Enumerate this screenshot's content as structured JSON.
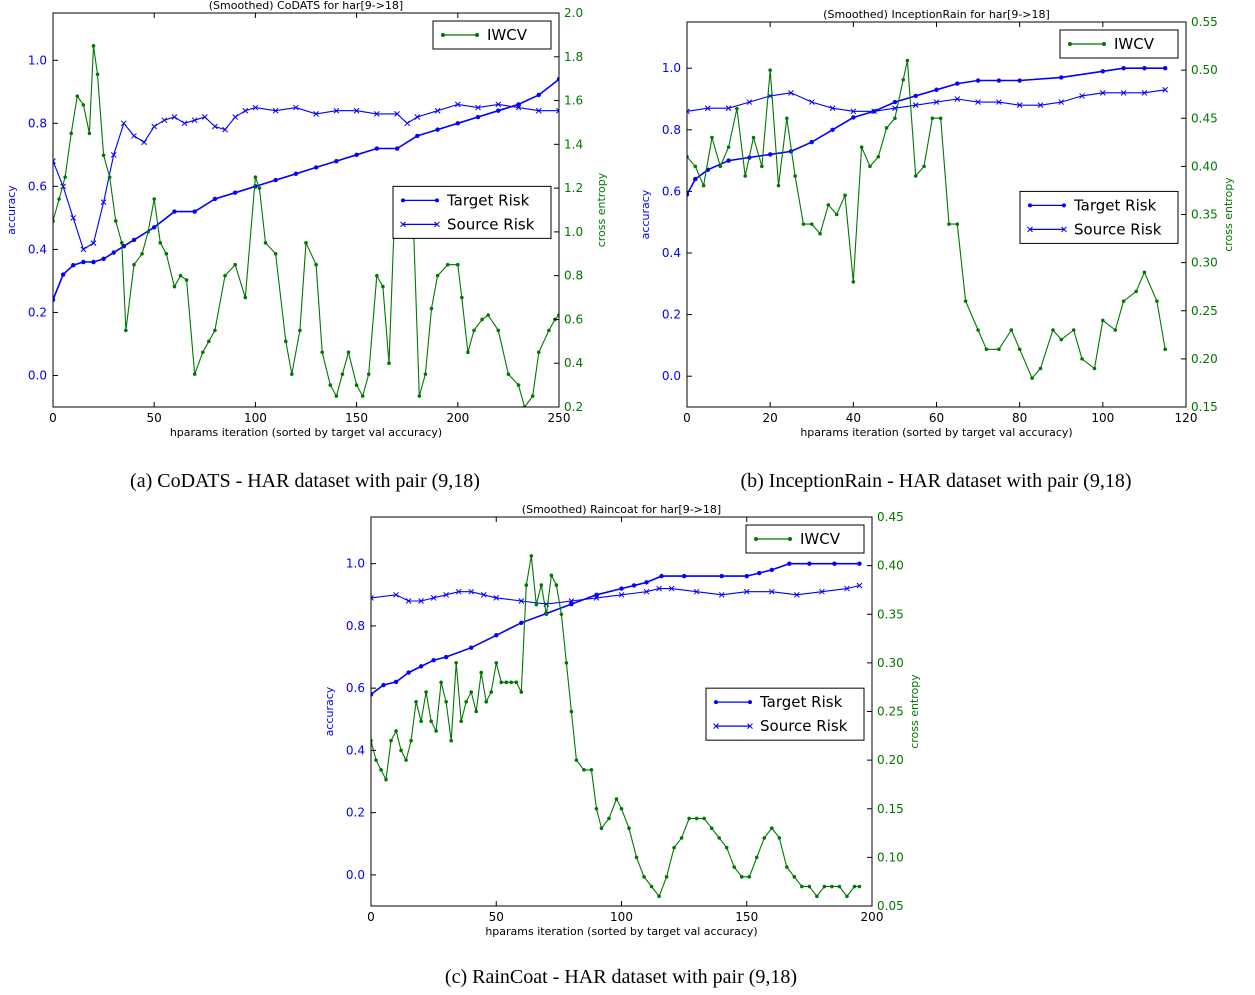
{
  "chart_data": [
    {
      "type": "line",
      "title": "(Smoothed) CoDATS for har[9->18]",
      "caption": "(a) CoDATS - HAR dataset with pair (9,18)",
      "xlabel": "hparams iteration (sorted by target val accuracy)",
      "ylabel_left": "accuracy",
      "ylabel_right": "cross entropy",
      "xlim": [
        0,
        250
      ],
      "ylim_left": [
        -0.1,
        1.15
      ],
      "ylim_right": [
        0.2,
        2.0
      ],
      "xticks": [
        0,
        50,
        100,
        150,
        200,
        250
      ],
      "yticks_left": [
        0.0,
        0.2,
        0.4,
        0.6,
        0.8,
        1.0
      ],
      "yticks_right": [
        0.2,
        0.4,
        0.6,
        0.8,
        1.0,
        1.2,
        1.4,
        1.6,
        1.8,
        2.0
      ],
      "legend_left": "center-right",
      "legend_right": "top-right",
      "series": [
        {
          "name": "Target Risk",
          "axis": "left",
          "color": "#0000ff",
          "marker": "dot",
          "x": [
            0,
            5,
            10,
            15,
            20,
            25,
            30,
            35,
            40,
            50,
            60,
            70,
            80,
            90,
            100,
            110,
            120,
            130,
            140,
            150,
            160,
            170,
            180,
            190,
            200,
            210,
            220,
            230,
            240,
            250
          ],
          "y": [
            0.24,
            0.32,
            0.35,
            0.36,
            0.36,
            0.37,
            0.39,
            0.41,
            0.43,
            0.47,
            0.52,
            0.52,
            0.56,
            0.58,
            0.6,
            0.62,
            0.64,
            0.66,
            0.68,
            0.7,
            0.72,
            0.72,
            0.76,
            0.78,
            0.8,
            0.82,
            0.84,
            0.86,
            0.89,
            0.94
          ]
        },
        {
          "name": "Source Risk",
          "axis": "left",
          "color": "#0000ff",
          "marker": "x",
          "x": [
            0,
            5,
            10,
            15,
            20,
            25,
            30,
            35,
            40,
            45,
            50,
            55,
            60,
            65,
            70,
            75,
            80,
            85,
            90,
            95,
            100,
            110,
            120,
            130,
            140,
            150,
            160,
            170,
            175,
            180,
            190,
            200,
            210,
            220,
            230,
            240,
            250
          ],
          "y": [
            0.68,
            0.6,
            0.5,
            0.4,
            0.42,
            0.55,
            0.7,
            0.8,
            0.76,
            0.74,
            0.79,
            0.81,
            0.82,
            0.8,
            0.81,
            0.82,
            0.79,
            0.78,
            0.82,
            0.84,
            0.85,
            0.84,
            0.85,
            0.83,
            0.84,
            0.84,
            0.83,
            0.83,
            0.8,
            0.82,
            0.84,
            0.86,
            0.85,
            0.86,
            0.85,
            0.84,
            0.84
          ]
        },
        {
          "name": "IWCV",
          "axis": "right",
          "color": "#007700",
          "marker": "dot",
          "x": [
            0,
            3,
            6,
            9,
            12,
            15,
            18,
            20,
            22,
            25,
            28,
            31,
            34,
            36,
            40,
            44,
            47,
            50,
            53,
            56,
            60,
            63,
            66,
            70,
            74,
            77,
            80,
            85,
            90,
            95,
            100,
            102,
            105,
            110,
            115,
            118,
            122,
            125,
            130,
            133,
            137,
            140,
            143,
            146,
            150,
            153,
            156,
            160,
            163,
            166,
            169,
            172,
            175,
            178,
            181,
            184,
            187,
            190,
            195,
            200,
            202,
            205,
            208,
            212,
            215,
            220,
            225,
            230,
            233,
            237,
            240,
            245,
            248,
            250
          ],
          "y": [
            1.05,
            1.15,
            1.25,
            1.45,
            1.62,
            1.58,
            1.45,
            1.85,
            1.72,
            1.35,
            1.25,
            1.05,
            0.95,
            0.55,
            0.85,
            0.9,
            1.0,
            1.15,
            0.95,
            0.9,
            0.75,
            0.8,
            0.78,
            0.35,
            0.45,
            0.5,
            0.55,
            0.8,
            0.85,
            0.7,
            1.25,
            1.2,
            0.95,
            0.9,
            0.5,
            0.35,
            0.55,
            0.95,
            0.85,
            0.45,
            0.3,
            0.25,
            0.35,
            0.45,
            0.3,
            0.25,
            0.35,
            0.8,
            0.75,
            0.4,
            1.15,
            1.12,
            1.1,
            1.05,
            0.25,
            0.35,
            0.65,
            0.8,
            0.85,
            0.85,
            0.7,
            0.45,
            0.55,
            0.6,
            0.62,
            0.55,
            0.35,
            0.3,
            0.2,
            0.25,
            0.45,
            0.55,
            0.6,
            0.62
          ]
        }
      ]
    },
    {
      "type": "line",
      "title": "(Smoothed) InceptionRain for har[9->18]",
      "caption": "(b) InceptionRain - HAR dataset with pair (9,18)",
      "xlabel": "hparams iteration (sorted by target val accuracy)",
      "ylabel_left": "accuracy",
      "ylabel_right": "cross entropy",
      "xlim": [
        0,
        120
      ],
      "ylim_left": [
        -0.1,
        1.15
      ],
      "ylim_right": [
        0.15,
        0.55
      ],
      "xticks": [
        0,
        20,
        40,
        60,
        80,
        100,
        120
      ],
      "yticks_left": [
        0.0,
        0.2,
        0.4,
        0.6,
        0.8,
        1.0
      ],
      "yticks_right": [
        0.15,
        0.2,
        0.25,
        0.3,
        0.35,
        0.4,
        0.45,
        0.5,
        0.55
      ],
      "legend_left": "center-right",
      "legend_right": "top-right",
      "series": [
        {
          "name": "Target Risk",
          "axis": "left",
          "color": "#0000ff",
          "marker": "dot",
          "x": [
            0,
            2,
            5,
            10,
            15,
            20,
            25,
            30,
            35,
            40,
            45,
            50,
            55,
            60,
            65,
            70,
            75,
            80,
            90,
            100,
            105,
            110,
            115
          ],
          "y": [
            0.59,
            0.64,
            0.67,
            0.7,
            0.71,
            0.72,
            0.73,
            0.76,
            0.8,
            0.84,
            0.86,
            0.89,
            0.91,
            0.93,
            0.95,
            0.96,
            0.96,
            0.96,
            0.97,
            0.99,
            1.0,
            1.0,
            1.0
          ]
        },
        {
          "name": "Source Risk",
          "axis": "left",
          "color": "#0000ff",
          "marker": "x",
          "x": [
            0,
            5,
            10,
            15,
            20,
            25,
            30,
            35,
            40,
            45,
            50,
            55,
            60,
            65,
            70,
            75,
            80,
            85,
            90,
            95,
            100,
            105,
            110,
            115
          ],
          "y": [
            0.86,
            0.87,
            0.87,
            0.89,
            0.91,
            0.92,
            0.89,
            0.87,
            0.86,
            0.86,
            0.87,
            0.88,
            0.89,
            0.9,
            0.89,
            0.89,
            0.88,
            0.88,
            0.89,
            0.91,
            0.92,
            0.92,
            0.92,
            0.93
          ]
        },
        {
          "name": "IWCV",
          "axis": "right",
          "color": "#007700",
          "marker": "dot",
          "x": [
            0,
            2,
            4,
            6,
            8,
            10,
            12,
            14,
            16,
            18,
            20,
            22,
            24,
            26,
            28,
            30,
            32,
            34,
            36,
            38,
            40,
            42,
            44,
            46,
            48,
            50,
            52,
            53,
            55,
            57,
            59,
            61,
            63,
            65,
            67,
            70,
            72,
            75,
            78,
            80,
            83,
            85,
            88,
            90,
            93,
            95,
            98,
            100,
            103,
            105,
            108,
            110,
            113,
            115
          ],
          "y": [
            0.41,
            0.4,
            0.38,
            0.43,
            0.4,
            0.42,
            0.46,
            0.39,
            0.43,
            0.4,
            0.5,
            0.38,
            0.45,
            0.39,
            0.34,
            0.34,
            0.33,
            0.36,
            0.35,
            0.37,
            0.28,
            0.42,
            0.4,
            0.41,
            0.44,
            0.45,
            0.49,
            0.51,
            0.39,
            0.4,
            0.45,
            0.45,
            0.34,
            0.34,
            0.26,
            0.23,
            0.21,
            0.21,
            0.23,
            0.21,
            0.18,
            0.19,
            0.23,
            0.22,
            0.23,
            0.2,
            0.19,
            0.24,
            0.23,
            0.26,
            0.27,
            0.29,
            0.26,
            0.21
          ]
        }
      ]
    },
    {
      "type": "line",
      "title": "(Smoothed) Raincoat for har[9->18]",
      "caption": "(c) RainCoat - HAR dataset with pair (9,18)",
      "xlabel": "hparams iteration (sorted by target val accuracy)",
      "ylabel_left": "accuracy",
      "ylabel_right": "cross entropy",
      "xlim": [
        0,
        200
      ],
      "ylim_left": [
        -0.1,
        1.15
      ],
      "ylim_right": [
        0.05,
        0.45
      ],
      "xticks": [
        0,
        50,
        100,
        150,
        200
      ],
      "yticks_left": [
        0.0,
        0.2,
        0.4,
        0.6,
        0.8,
        1.0
      ],
      "yticks_right": [
        0.05,
        0.1,
        0.15,
        0.2,
        0.25,
        0.3,
        0.35,
        0.4,
        0.45
      ],
      "legend_left": "center-right",
      "legend_right": "top-right",
      "series": [
        {
          "name": "Target Risk",
          "axis": "left",
          "color": "#0000ff",
          "marker": "dot",
          "x": [
            0,
            5,
            10,
            15,
            20,
            25,
            30,
            40,
            50,
            60,
            70,
            80,
            90,
            100,
            105,
            110,
            116,
            125,
            140,
            150,
            155,
            160,
            167,
            175,
            185,
            195
          ],
          "y": [
            0.58,
            0.61,
            0.62,
            0.65,
            0.67,
            0.69,
            0.7,
            0.73,
            0.77,
            0.81,
            0.84,
            0.87,
            0.9,
            0.92,
            0.93,
            0.94,
            0.96,
            0.96,
            0.96,
            0.96,
            0.97,
            0.98,
            1.0,
            1.0,
            1.0,
            1.0
          ]
        },
        {
          "name": "Source Risk",
          "axis": "left",
          "color": "#0000ff",
          "marker": "x",
          "x": [
            0,
            10,
            15,
            20,
            25,
            30,
            35,
            40,
            45,
            50,
            60,
            70,
            80,
            90,
            100,
            110,
            115,
            120,
            130,
            140,
            150,
            160,
            170,
            180,
            190,
            195
          ],
          "y": [
            0.89,
            0.9,
            0.88,
            0.88,
            0.89,
            0.9,
            0.91,
            0.91,
            0.9,
            0.89,
            0.88,
            0.87,
            0.88,
            0.89,
            0.9,
            0.91,
            0.92,
            0.92,
            0.91,
            0.9,
            0.91,
            0.91,
            0.9,
            0.91,
            0.92,
            0.93
          ]
        },
        {
          "name": "IWCV",
          "axis": "right",
          "color": "#007700",
          "marker": "dot",
          "x": [
            0,
            2,
            4,
            6,
            8,
            10,
            12,
            14,
            16,
            18,
            20,
            22,
            24,
            26,
            28,
            30,
            32,
            34,
            36,
            38,
            40,
            42,
            44,
            46,
            48,
            50,
            52,
            54,
            56,
            58,
            60,
            62,
            64,
            66,
            68,
            70,
            72,
            74,
            76,
            78,
            80,
            82,
            85,
            88,
            90,
            92,
            95,
            98,
            100,
            103,
            106,
            109,
            112,
            115,
            118,
            121,
            124,
            127,
            130,
            133,
            136,
            139,
            142,
            145,
            148,
            151,
            154,
            157,
            160,
            163,
            166,
            169,
            172,
            175,
            178,
            181,
            184,
            187,
            190,
            193,
            195
          ],
          "y": [
            0.22,
            0.2,
            0.19,
            0.18,
            0.22,
            0.23,
            0.21,
            0.2,
            0.22,
            0.26,
            0.24,
            0.27,
            0.24,
            0.23,
            0.28,
            0.26,
            0.22,
            0.3,
            0.24,
            0.26,
            0.27,
            0.25,
            0.29,
            0.26,
            0.27,
            0.3,
            0.28,
            0.28,
            0.28,
            0.28,
            0.27,
            0.38,
            0.41,
            0.36,
            0.38,
            0.35,
            0.39,
            0.38,
            0.35,
            0.3,
            0.25,
            0.2,
            0.19,
            0.19,
            0.15,
            0.13,
            0.14,
            0.16,
            0.15,
            0.13,
            0.1,
            0.08,
            0.07,
            0.06,
            0.08,
            0.11,
            0.12,
            0.14,
            0.14,
            0.14,
            0.13,
            0.12,
            0.11,
            0.09,
            0.08,
            0.08,
            0.1,
            0.12,
            0.13,
            0.12,
            0.09,
            0.08,
            0.07,
            0.07,
            0.06,
            0.07,
            0.07,
            0.07,
            0.06,
            0.07,
            0.07
          ]
        }
      ]
    }
  ]
}
